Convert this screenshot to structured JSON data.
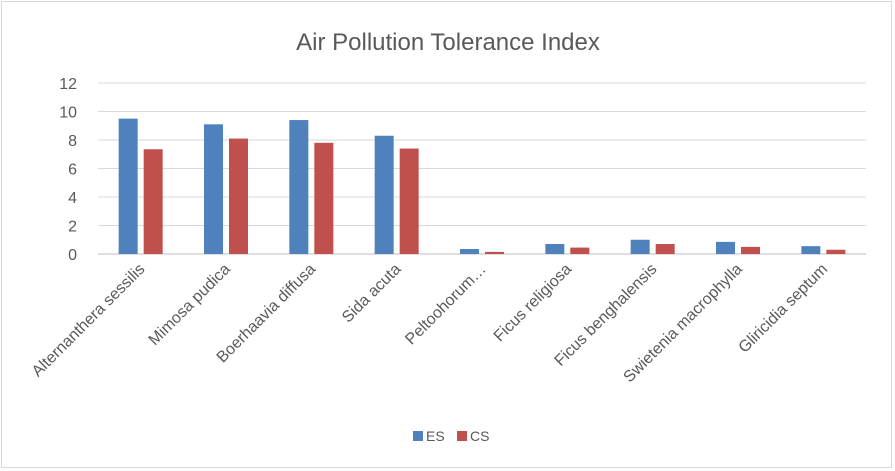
{
  "chart_data": {
    "type": "bar",
    "title": "Air Pollution Tolerance Index",
    "xlabel": "",
    "ylabel": "",
    "ylim": [
      0,
      12
    ],
    "yticks": [
      "0",
      "2",
      "4",
      "6",
      "8",
      "10",
      "12"
    ],
    "grid": true,
    "legend_position": "bottom",
    "categories": [
      "Alternanthera sessilis",
      "Mimosa pudica",
      "Boerhaavia diffusa",
      "Sida acuta",
      "Peltoohorum…",
      "Ficus religiosa",
      "Ficus benghalensis",
      "Swietenia macrophylla",
      "Gliricidia septum"
    ],
    "series": [
      {
        "name": "ES",
        "color": "#4f81bd",
        "values": [
          9.5,
          9.1,
          9.4,
          8.3,
          0.35,
          0.7,
          1.0,
          0.85,
          0.55
        ]
      },
      {
        "name": "CS",
        "color": "#c0504d",
        "values": [
          7.35,
          8.1,
          7.8,
          7.4,
          0.15,
          0.45,
          0.7,
          0.5,
          0.3
        ]
      }
    ]
  }
}
